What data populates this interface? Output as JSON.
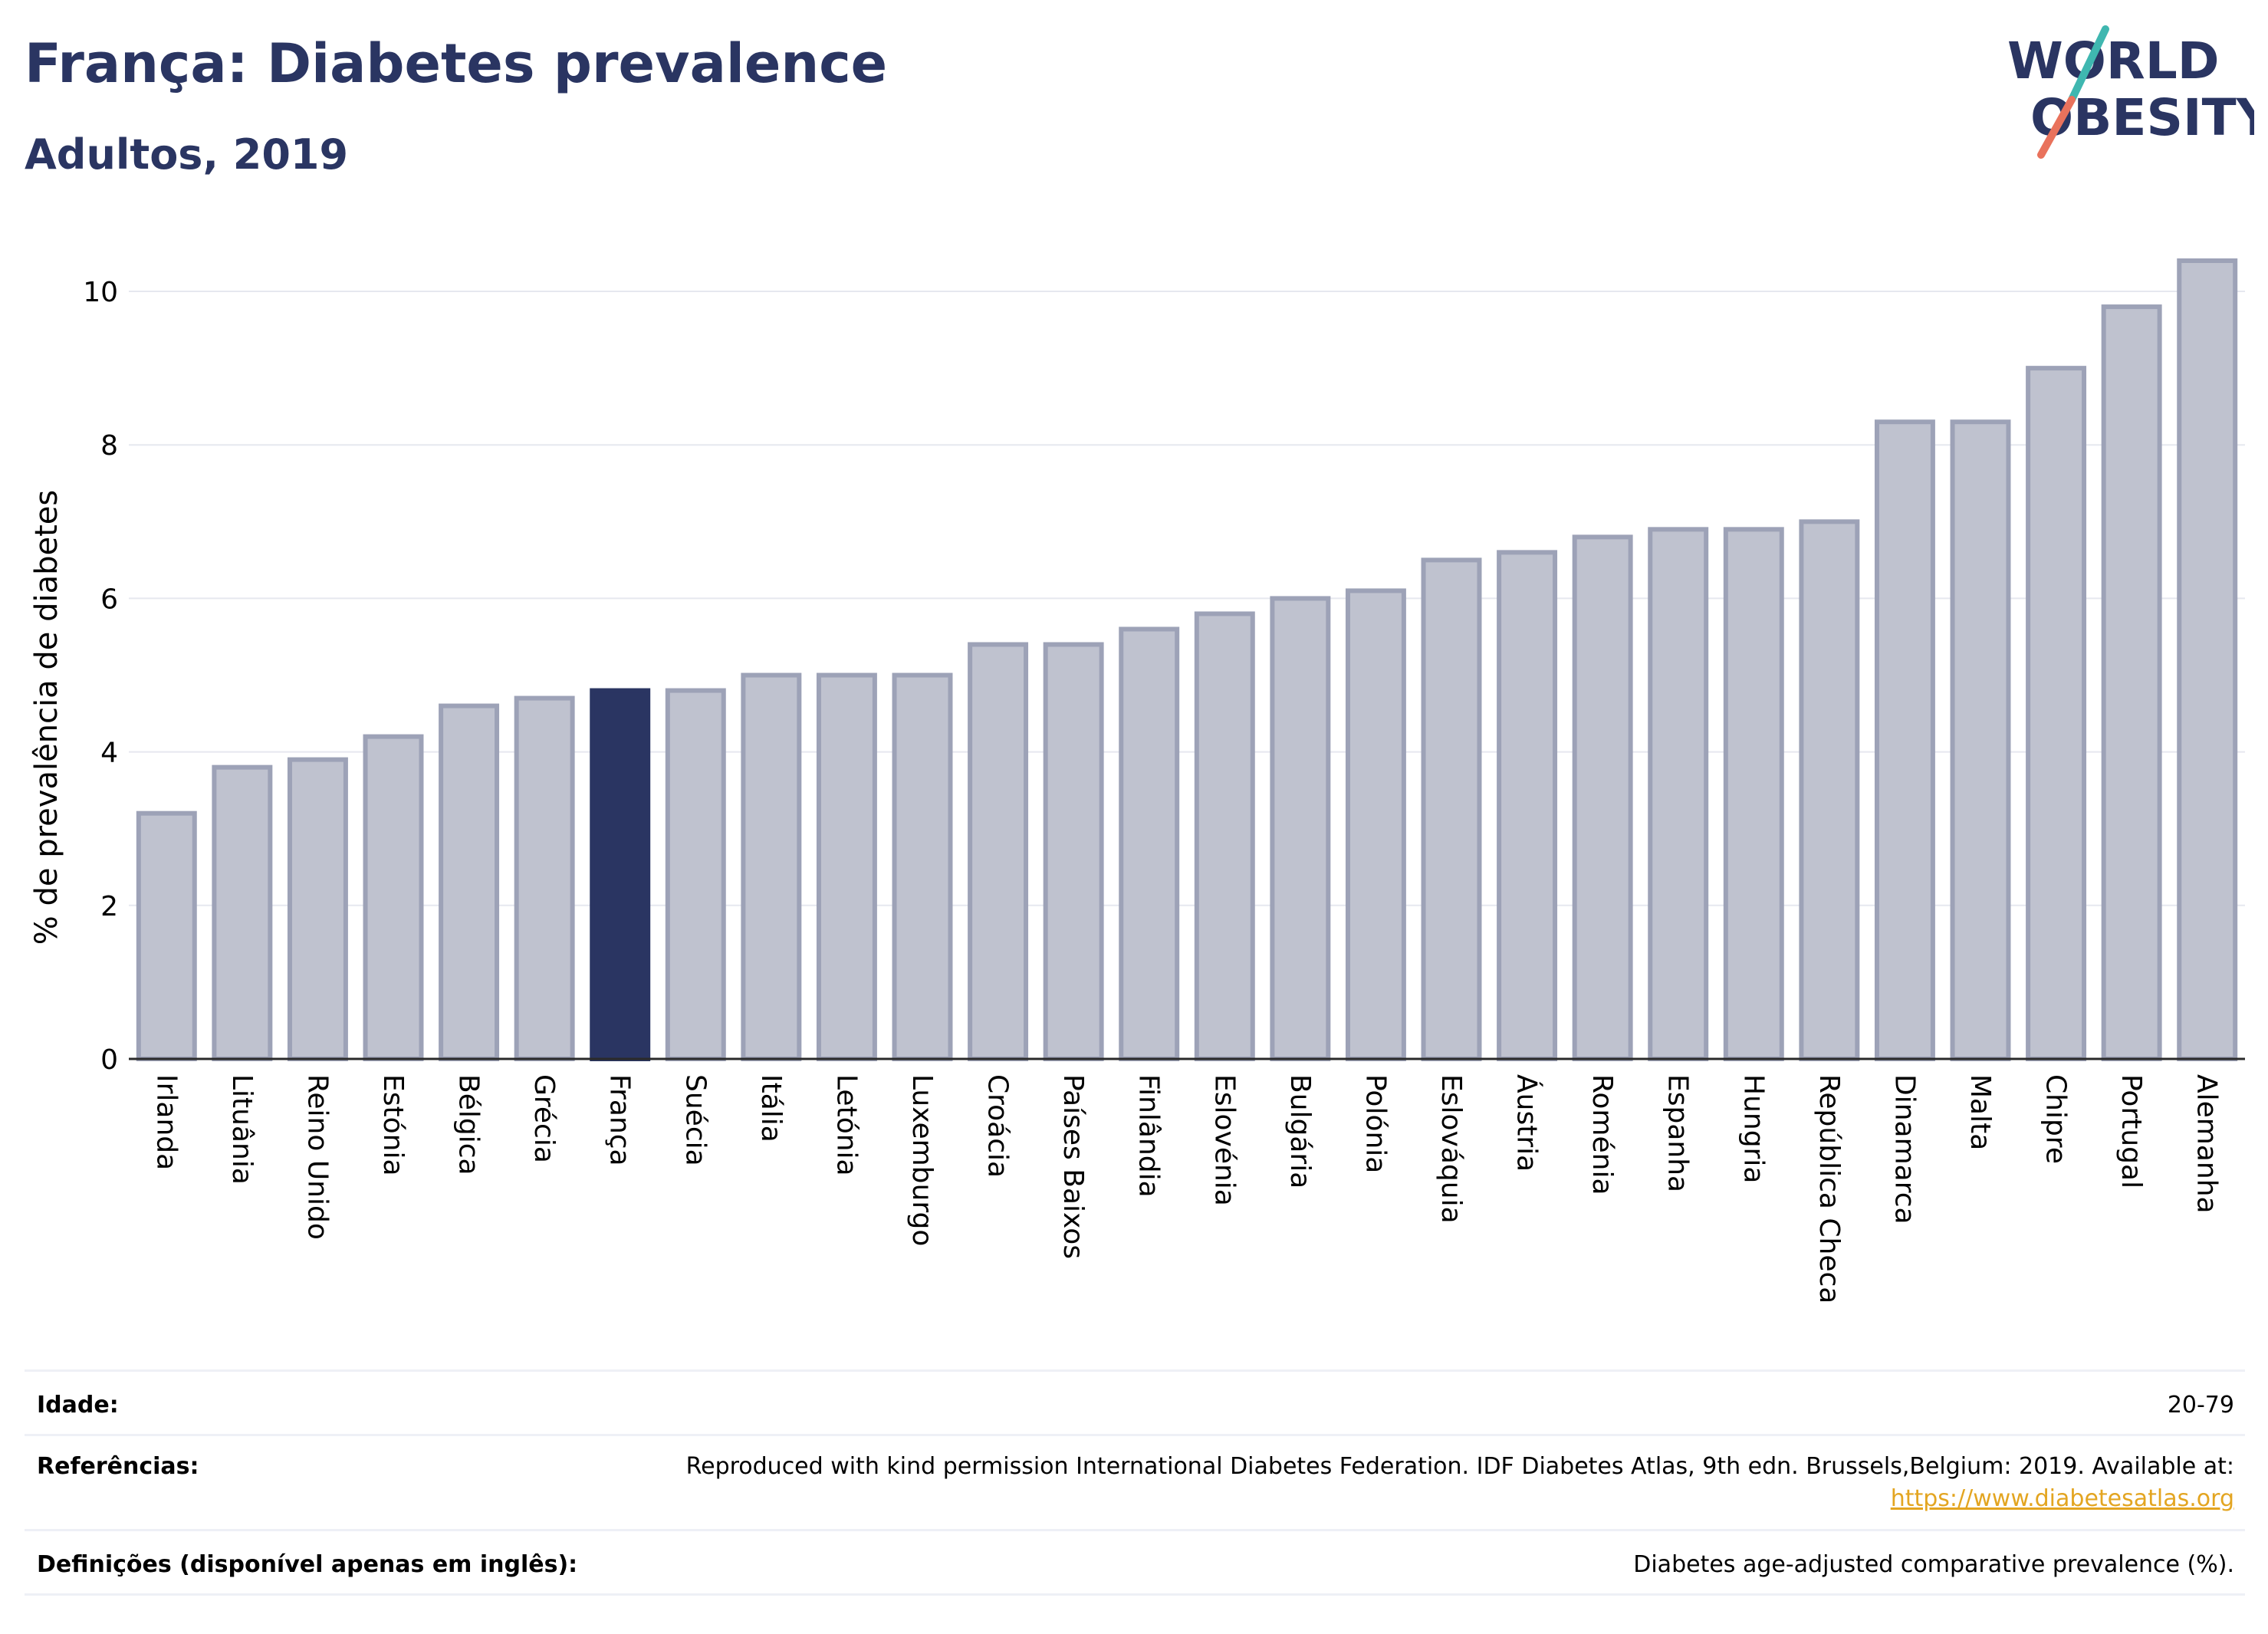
{
  "header": {
    "title": "França: Diabetes prevalence",
    "subtitle": "Adultos, 2019"
  },
  "logo": {
    "line1": "WORLD",
    "line2": "OBESITY"
  },
  "colors": {
    "highlight": "#2a3562",
    "bar_fill": "#bfc2cf",
    "bar_stroke": "#9da2b7",
    "grid": "#e6e8ef",
    "logo_text": "#2a3562",
    "logo_slash_top": "#3fb7b0",
    "logo_slash_bottom": "#e9725c"
  },
  "chart_data": {
    "type": "bar",
    "ylabel": "% de prevalência de diabetes",
    "ylim": [
      0,
      10.5
    ],
    "yticks": [
      0,
      2,
      4,
      6,
      8,
      10
    ],
    "highlight": "França",
    "categories": [
      "Irlanda",
      "Lituânia",
      "Reino Unido",
      "Estónia",
      "Bélgica",
      "Grécia",
      "França",
      "Suécia",
      "Itália",
      "Letónia",
      "Luxemburgo",
      "Croácia",
      "Países Baixos",
      "Finlândia",
      "Eslovénia",
      "Bulgária",
      "Polónia",
      "Eslováquia",
      "Áustria",
      "Roménia",
      "Espanha",
      "Hungria",
      "República Checa",
      "Dinamarca",
      "Malta",
      "Chipre",
      "Portugal",
      "Alemanha"
    ],
    "values": [
      3.2,
      3.8,
      3.9,
      4.2,
      4.6,
      4.7,
      4.8,
      4.8,
      5.0,
      5.0,
      5.0,
      5.4,
      5.4,
      5.6,
      5.8,
      6.0,
      6.1,
      6.5,
      6.6,
      6.8,
      6.9,
      6.9,
      7.0,
      8.3,
      8.3,
      9.0,
      9.8,
      10.4
    ],
    "grid": true,
    "legend": "none"
  },
  "info": {
    "age_label": "Idade:",
    "age_value": "20-79",
    "refs_label": "Referências:",
    "refs_value": "Reproduced with kind permission International Diabetes Federation. IDF Diabetes Atlas, 9th edn. Brussels,Belgium: 2019. Available at:",
    "refs_link": "https://www.diabetesatlas.org",
    "defs_label": "Definições (disponível apenas em inglês):",
    "defs_value": "Diabetes age-adjusted comparative prevalence (%)."
  }
}
